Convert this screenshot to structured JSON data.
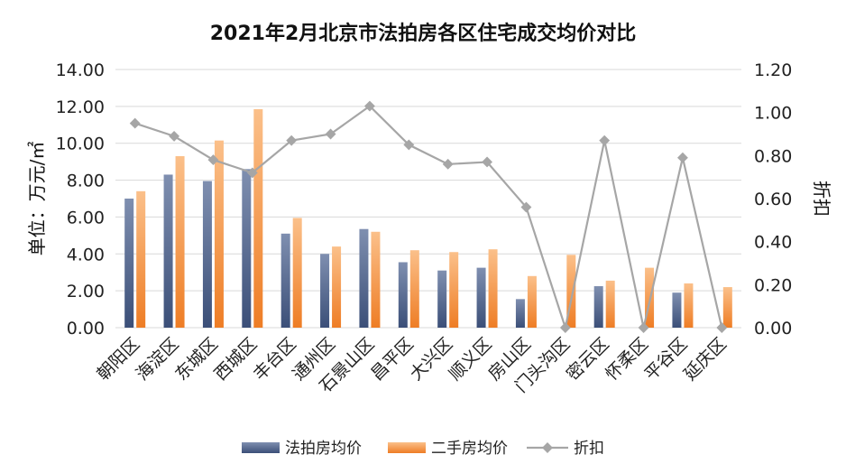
{
  "chart_data": {
    "type": "bar",
    "title": "2021年2月北京市法拍房各区住宅成交均价对比",
    "ylabel": "单位：万元/㎡",
    "y2label": "折扣",
    "ylim": [
      0,
      14
    ],
    "y2lim": [
      0,
      1.2
    ],
    "yticks": [
      "0.00",
      "2.00",
      "4.00",
      "6.00",
      "8.00",
      "10.00",
      "12.00",
      "14.00"
    ],
    "y2ticks": [
      "0.00",
      "0.20",
      "0.40",
      "0.60",
      "0.80",
      "1.00",
      "1.20"
    ],
    "grid": true,
    "legend_position": "bottom",
    "categories": [
      "朝阳区",
      "海淀区",
      "东城区",
      "西城区",
      "丰台区",
      "通州区",
      "石景山区",
      "昌平区",
      "大兴区",
      "顺义区",
      "房山区",
      "门头沟区",
      "密云区",
      "怀柔区",
      "平谷区",
      "延庆区"
    ],
    "series": [
      {
        "name": "法拍房均价",
        "kind": "bar",
        "color": "#5a6e93",
        "values": [
          7.0,
          8.3,
          7.95,
          8.6,
          5.1,
          4.0,
          5.35,
          3.55,
          3.1,
          3.25,
          1.55,
          0,
          2.25,
          0,
          1.9,
          0
        ]
      },
      {
        "name": "二手房均价",
        "kind": "bar",
        "color": "#f0913a",
        "values": [
          7.4,
          9.3,
          10.15,
          11.85,
          5.95,
          4.4,
          5.2,
          4.2,
          4.1,
          4.25,
          2.8,
          3.95,
          2.55,
          3.25,
          2.4,
          2.2
        ]
      },
      {
        "name": "折扣",
        "kind": "line",
        "axis": "right",
        "color": "#a6a6a6",
        "values": [
          0.95,
          0.89,
          0.78,
          0.72,
          0.87,
          0.9,
          1.03,
          0.85,
          0.76,
          0.77,
          0.56,
          0,
          0.87,
          0,
          0.79,
          0
        ]
      }
    ]
  }
}
